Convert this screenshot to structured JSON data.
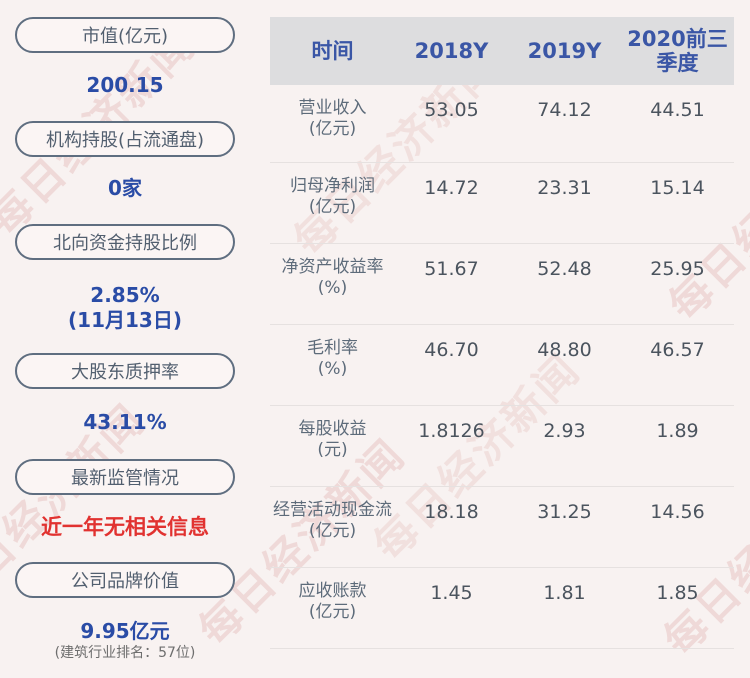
{
  "page": {
    "watermark_text": "每日经济新闻"
  },
  "colors": {
    "background": "#f8f2f1",
    "header_bg": "#dddddf",
    "header_text_blue": "#3a56a6",
    "pill_border": "#5f6e80",
    "pill_label": "#525f6f",
    "value_blue": "#2a4ca6",
    "alert_red": "#e13230",
    "row_label_gray": "#5d6b7a",
    "cell_value_gray": "#4b545e",
    "divider": "#e6e1e0",
    "watermark_pink": "#d69c96"
  },
  "sidebar": {
    "items": [
      {
        "label": "市值(亿元)",
        "value": "200.15"
      },
      {
        "label": "机构持股(占流通盘)",
        "value": "0家"
      },
      {
        "label": "北向资金持股比例",
        "value": "2.85%",
        "value_line2": "(11月13日)"
      },
      {
        "label": "大股东质押率",
        "value": "43.11%"
      },
      {
        "label": "最新监管情况",
        "value": "近一年无相关信息"
      },
      {
        "label": "公司品牌价值",
        "value": "9.95亿元",
        "note": "(建筑行业排名：57位)"
      }
    ]
  },
  "table": {
    "header": {
      "col0": "时间",
      "col1": "2018Y",
      "col2": "2019Y",
      "col3": "2020前三季度"
    },
    "rows": [
      {
        "label": "营业收入",
        "unit": "(亿元)",
        "values": [
          "53.05",
          "74.12",
          "44.51"
        ]
      },
      {
        "label": "归母净利润",
        "unit": "(亿元)",
        "values": [
          "14.72",
          "23.31",
          "15.14"
        ]
      },
      {
        "label": "净资产收益率",
        "unit": "(%)",
        "values": [
          "51.67",
          "52.48",
          "25.95"
        ]
      },
      {
        "label": "毛利率",
        "unit": "(%)",
        "values": [
          "46.70",
          "48.80",
          "46.57"
        ]
      },
      {
        "label": "每股收益",
        "unit": "(元)",
        "values": [
          "1.8126",
          "2.93",
          "1.89"
        ]
      },
      {
        "label": "经营活动现金流",
        "unit": "(亿元)",
        "values": [
          "18.18",
          "31.25",
          "14.56"
        ]
      },
      {
        "label": "应收账款",
        "unit": "(亿元)",
        "values": [
          "1.45",
          "1.81",
          "1.85"
        ]
      }
    ]
  },
  "chart_data": {
    "type": "table",
    "title": "",
    "columns": [
      "时间",
      "2018Y",
      "2019Y",
      "2020前三季度"
    ],
    "rows": [
      [
        "营业收入(亿元)",
        53.05,
        74.12,
        44.51
      ],
      [
        "归母净利润(亿元)",
        14.72,
        23.31,
        15.14
      ],
      [
        "净资产收益率(%)",
        51.67,
        52.48,
        25.95
      ],
      [
        "毛利率(%)",
        46.7,
        48.8,
        46.57
      ],
      [
        "每股收益(元)",
        1.8126,
        2.93,
        1.89
      ],
      [
        "经营活动现金流(亿元)",
        18.18,
        31.25,
        14.56
      ],
      [
        "应收账款(亿元)",
        1.45,
        1.81,
        1.85
      ]
    ],
    "key_values": [
      {
        "label": "市值(亿元)",
        "value": "200.15"
      },
      {
        "label": "机构持股(占流通盘)",
        "value": "0家"
      },
      {
        "label": "北向资金持股比例",
        "value": "2.85% (11月13日)"
      },
      {
        "label": "大股东质押率",
        "value": "43.11%"
      },
      {
        "label": "最新监管情况",
        "value": "近一年无相关信息"
      },
      {
        "label": "公司品牌价值",
        "value": "9.95亿元 (建筑行业排名：57位)"
      }
    ]
  }
}
